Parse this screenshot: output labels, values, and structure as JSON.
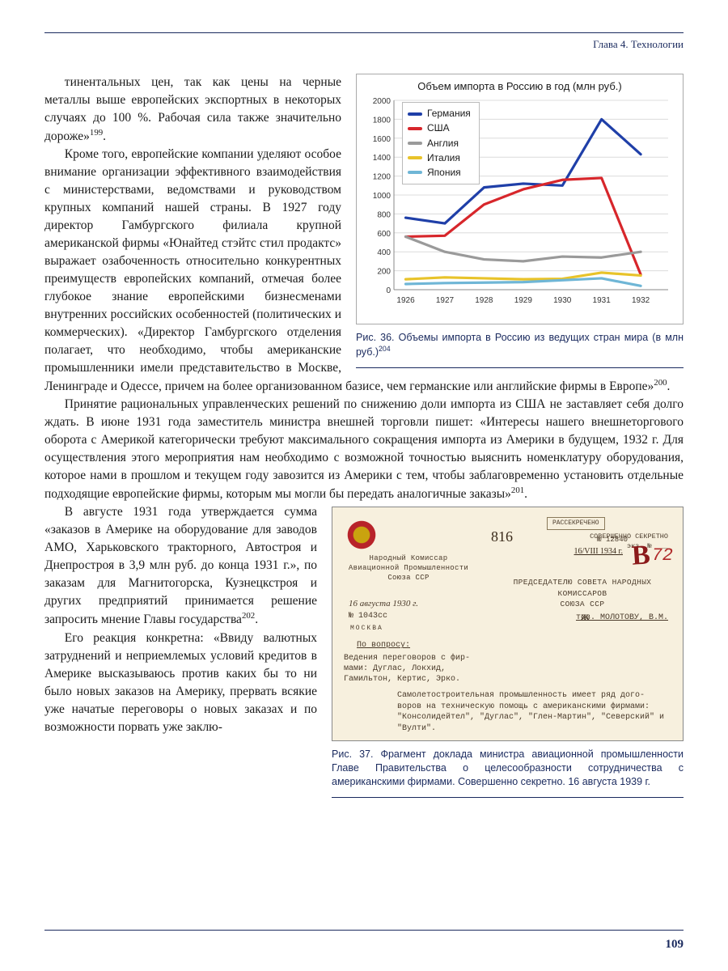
{
  "header": {
    "chapter": "Глава 4. Технологии"
  },
  "page_number": "109",
  "chart": {
    "type": "line",
    "title": "Объем импорта в Россию в год (млн руб.)",
    "title_fontsize": 13,
    "background_color": "#ffffff",
    "grid_color": "#dcdcdc",
    "axis_color": "#888888",
    "x_categories": [
      "1926",
      "1927",
      "1928",
      "1929",
      "1930",
      "1931",
      "1932"
    ],
    "ylim": [
      0,
      2000
    ],
    "ytick_step": 200,
    "yticks": [
      0,
      200,
      400,
      600,
      800,
      1000,
      1200,
      1400,
      1600,
      1800,
      2000
    ],
    "line_width": 3.2,
    "series": [
      {
        "name": "Германия",
        "color": "#1f3fa8",
        "values": [
          760,
          700,
          1080,
          1120,
          1100,
          1800,
          1430
        ]
      },
      {
        "name": "США",
        "color": "#d7262b",
        "values": [
          560,
          570,
          900,
          1060,
          1160,
          1180,
          160
        ]
      },
      {
        "name": "Англия",
        "color": "#9a9a9a",
        "values": [
          560,
          400,
          320,
          300,
          350,
          340,
          400
        ]
      },
      {
        "name": "Италия",
        "color": "#e8c32a",
        "values": [
          110,
          130,
          120,
          110,
          115,
          180,
          150
        ]
      },
      {
        "name": "Япония",
        "color": "#6fb6d6",
        "values": [
          60,
          70,
          75,
          80,
          100,
          120,
          40
        ]
      }
    ],
    "caption": "Рис. 36. Объемы импорта в Россию из ведущих стран мира (в млн руб.)",
    "caption_sup": "204"
  },
  "doc": {
    "org_lines": "Народный Комиссар\nАвиационной Промышленности\nСоюза ССР",
    "date_script": "16 августа 1930 г.",
    "number": "№ 1043сс",
    "city": "МОСКВА",
    "subject_label": "По вопросу:",
    "subject_body": "Ведения переговоров с фир-\nмами: Дуглас, Локхид,\nГамильтон, Кертис, Эрко.",
    "declass": "РАССЕКРЕЧЕНО",
    "secret": "СОВЕРШЕННО СЕКРЕТНО",
    "ex_label": "экз. №",
    "ex_no": "№ 12840",
    "stamp_date": "16/VIII 1934 г.",
    "script_816": "816",
    "big_b": "В",
    "big_72": "72",
    "addressee": "ПРЕДСЕДАТЕЛЮ СОВЕТА НАРОДНЫХ КОМИССАРОВ\nСОЮЗА ССР",
    "molotov": "тов. МОЛОТОВУ, В.М.",
    "strike_mark": "ж",
    "body_para": "Самолетостроительная промышленность имеет ряд дого-\nворов на техническую помощь с американскими фирмами:\n\"Консолидейтел\", \"Дуглас\", \"Глен-Мартин\", \"Северский\" и\n\"Вулти\".",
    "caption": "Рис. 37. Фрагмент доклада министра авиационной промышленности Главе Правительства о целесообразности сотрудничества с американскими фирмами. Совершенно секретно. 16 августа 1939 г."
  },
  "body": {
    "p1": "тинентальных цен, так как цены на черные металлы выше европейских экспортных в некоторых случаях до 100 %. Рабочая сила также значительно дороже»",
    "p1_sup": "199",
    "p2a": "Кроме того, европейские компании уделяют особое внимание организации эффективного взаимодействия с министерствами, ведомствами и руководством крупных компаний нашей страны. В 1927 году директор Гамбургского филиала крупной американской фирмы «Юнайтед стэйтс стил продактс» выражает озабоченность относительно конкурентных преимуществ европейских компаний, отмечая более глубокое знание европейскими бизнесменами внутренних российских особенностей (политических и коммерческих). «Директор Гамбургского отделения полагает, что необходимо, чтобы американские промышленники имели представительство в Москве, Ленинграде и Одессе, причем на более организованном базисе, чем германские или английские фирмы в Европе»",
    "p2_sup": "200",
    "p3": "Принятие рациональных управленческих решений по снижению доли импорта из США не заставляет себя долго ждать. В июне 1931 года заместитель министра внешней торговли пишет: «Интересы нашего внешнеторгового оборота с Америкой категорически требуют максимального сокращения импорта из Америки в будущем, 1932 г. Для осуществления этого мероприятия нам необходимо с возможной точностью выяснить номенклатуру оборудования, которое нами в прошлом и текущем году завозится из Америки с тем, чтобы заблаговременно установить отдельные подходящие европейские фирмы, которым мы могли бы передать аналогичные заказы»",
    "p3_sup": "201",
    "p4": "В августе 1931 года утверждается сумма «заказов в Америке на оборудование для заводов АМО, Харьковского тракторного, Автостроя и Днепростроя в 3,9 млн руб. до конца 1931 г.», по заказам для Магнитогорска, Кузнецкстроя и других предприятий принимается решение запросить мнение Главы государства",
    "p4_sup": "202",
    "p5": "Его реакция конкретна: «Ввиду валютных затруднений и неприемлемых условий кредитов в Америке высказываюсь против каких бы то ни было новых заказов на Америку, прервать всякие уже начатые переговоры о новых заказах и по возможности порвать уже заклю-"
  }
}
